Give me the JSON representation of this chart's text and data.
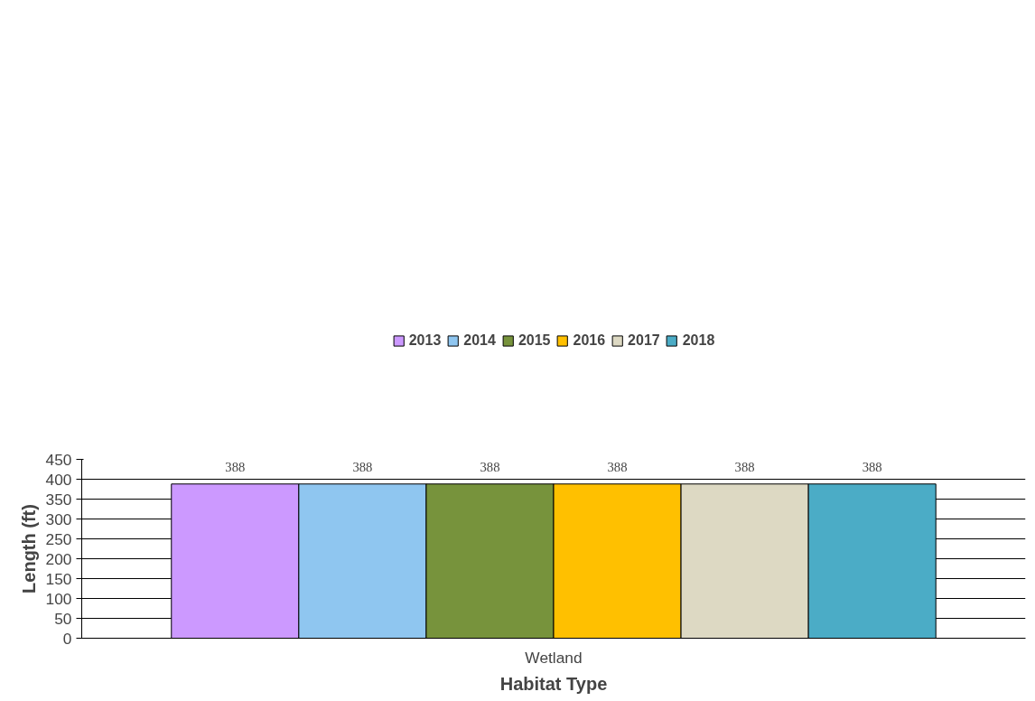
{
  "chart_data": {
    "type": "bar",
    "xlabel": "Habitat Type",
    "ylabel": "Length (ft)",
    "categories": [
      "Wetland"
    ],
    "series": [
      {
        "name": "2013",
        "color": "#cc99ff",
        "values": [
          388
        ]
      },
      {
        "name": "2014",
        "color": "#8fc6f0",
        "values": [
          388
        ]
      },
      {
        "name": "2015",
        "color": "#77933c",
        "values": [
          388
        ]
      },
      {
        "name": "2016",
        "color": "#ffc000",
        "values": [
          388
        ]
      },
      {
        "name": "2017",
        "color": "#ddd9c3",
        "values": [
          388
        ]
      },
      {
        "name": "2018",
        "color": "#4bacc6",
        "values": [
          388
        ]
      }
    ],
    "ylim": [
      0,
      450
    ],
    "yticks": [
      0,
      50,
      100,
      150,
      200,
      250,
      300,
      350,
      400,
      450
    ],
    "grid": "y",
    "legend": "top",
    "data_labels": true
  }
}
